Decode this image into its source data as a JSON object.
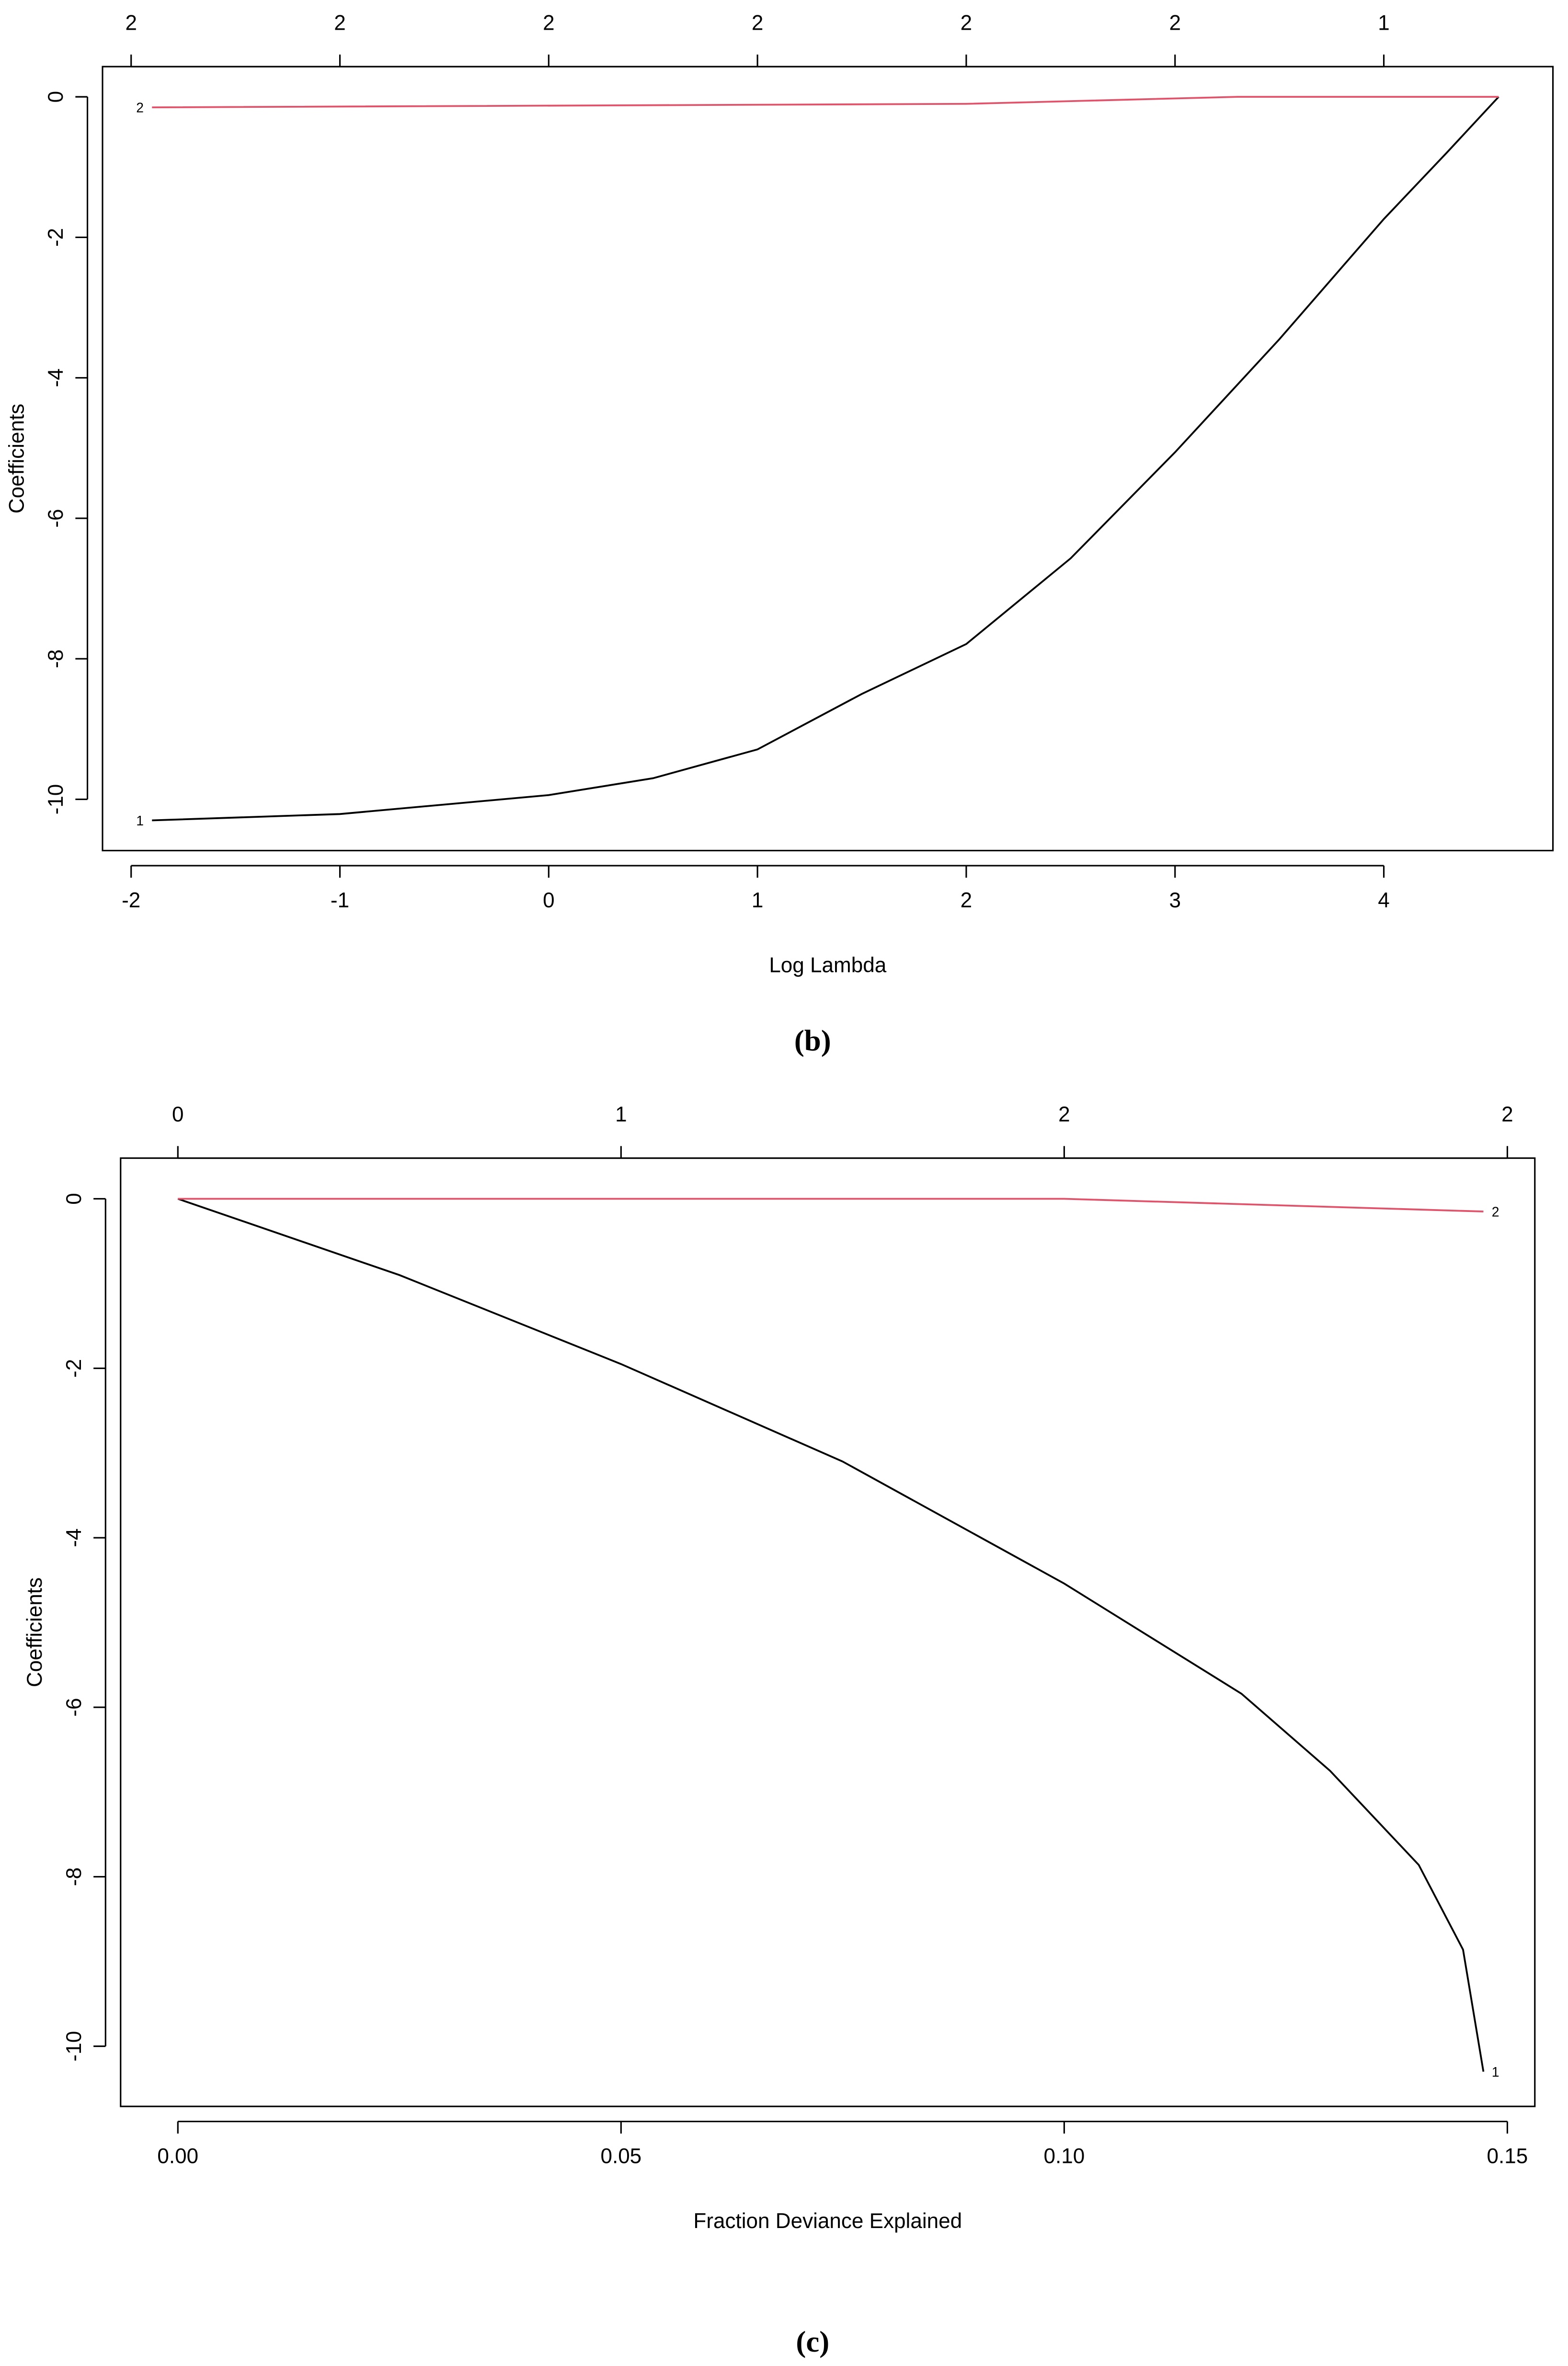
{
  "chart_data": [
    {
      "type": "line",
      "caption": "(b)",
      "x_label": "Log Lambda",
      "y_label": "Coefficients",
      "xlim": [
        -2.137,
        4.81
      ],
      "ylim": [
        -10.73,
        0.43
      ],
      "xticks": [
        -2,
        -1,
        0,
        1,
        2,
        3,
        4
      ],
      "yticks": [
        0,
        -2,
        -4,
        -6,
        -8,
        -10
      ],
      "top_ticks": [
        {
          "value": -2,
          "label": "2"
        },
        {
          "value": -1,
          "label": "2"
        },
        {
          "value": 0,
          "label": "2"
        },
        {
          "value": 1,
          "label": "2"
        },
        {
          "value": 2,
          "label": "2"
        },
        {
          "value": 3,
          "label": "2"
        },
        {
          "value": 4,
          "label": "1"
        }
      ],
      "label_side": "left",
      "series": [
        {
          "name": "1",
          "color": "#000000",
          "x": [
            -1.9,
            -1,
            0,
            0.5,
            1,
            1.5,
            2,
            2.5,
            3,
            3.5,
            4,
            4.3,
            4.55
          ],
          "values": [
            -10.3,
            -10.21,
            -9.94,
            -9.7,
            -9.29,
            -8.5,
            -7.79,
            -6.57,
            -5.06,
            -3.45,
            -1.74,
            -0.8,
            0
          ]
        },
        {
          "name": "2",
          "color": "#df536b",
          "x": [
            -1.9,
            2,
            3.3,
            4.55
          ],
          "values": [
            -0.15,
            -0.1,
            0,
            0
          ]
        }
      ]
    },
    {
      "type": "line",
      "caption": "(c)",
      "x_label": "Fraction Deviance Explained",
      "y_label": "Coefficients",
      "xlim": [
        -0.00646,
        0.1531
      ],
      "ylim": [
        -10.71,
        0.48
      ],
      "xticks": [
        {
          "value": 0,
          "label": "0.00"
        },
        0.05,
        {
          "value": 0.1,
          "label": "0.10"
        },
        0.15
      ],
      "yticks": [
        0,
        -2,
        -4,
        -6,
        -8,
        -10
      ],
      "top_ticks": [
        {
          "value": 0,
          "label": "0"
        },
        {
          "value": 0.05,
          "label": "1"
        },
        {
          "value": 0.1,
          "label": "2"
        },
        {
          "value": 0.15,
          "label": "2"
        }
      ],
      "label_side": "right",
      "series": [
        {
          "name": "1",
          "color": "#000000",
          "x": [
            0,
            0.025,
            0.05,
            0.075,
            0.1,
            0.12,
            0.13,
            0.14,
            0.145,
            0.1473
          ],
          "values": [
            0,
            -0.9,
            -1.95,
            -3.1,
            -4.54,
            -5.84,
            -6.75,
            -7.86,
            -8.86,
            -10.3
          ]
        },
        {
          "name": "2",
          "color": "#df536b",
          "x": [
            0,
            0.1,
            0.1473
          ],
          "values": [
            0,
            0,
            -0.15
          ]
        }
      ]
    }
  ]
}
